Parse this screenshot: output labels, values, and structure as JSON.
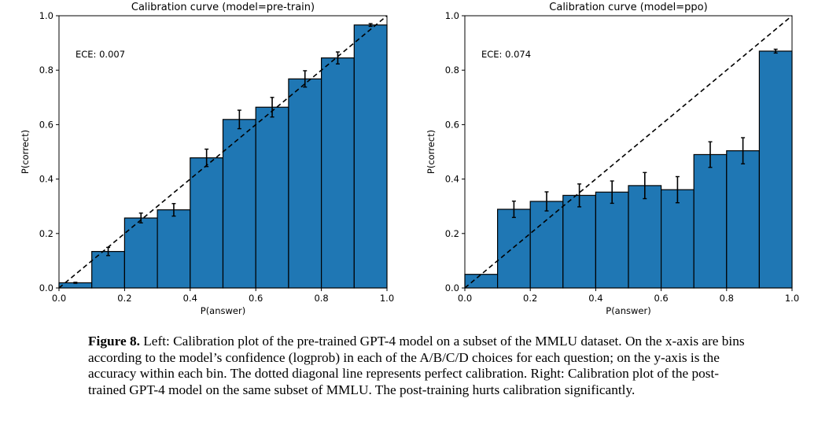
{
  "chart_data": [
    {
      "type": "bar",
      "title": "Calibration curve (model=pre-train)",
      "xlabel": "P(answer)",
      "ylabel": "P(correct)",
      "annotation": "ECE: 0.007",
      "xlim": [
        0,
        1
      ],
      "ylim": [
        0,
        1
      ],
      "xticks": [
        "0.0",
        "0.2",
        "0.4",
        "0.6",
        "0.8",
        "1.0"
      ],
      "yticks": [
        "0.0",
        "0.2",
        "0.4",
        "0.6",
        "0.8",
        "1.0"
      ],
      "bin_edges": [
        0,
        0.1,
        0.2,
        0.3,
        0.4,
        0.5,
        0.6,
        0.7,
        0.8,
        0.9,
        1.0
      ],
      "values": [
        0.019,
        0.134,
        0.257,
        0.287,
        0.478,
        0.619,
        0.664,
        0.768,
        0.845,
        0.966
      ],
      "errors": [
        0.002,
        0.015,
        0.018,
        0.023,
        0.032,
        0.034,
        0.036,
        0.03,
        0.022,
        0.005
      ],
      "diagonal": "perfect calibration (dashed)",
      "bar_color": "#1f77b4"
    },
    {
      "type": "bar",
      "title": "Calibration curve (model=ppo)",
      "xlabel": "P(answer)",
      "ylabel": "P(correct)",
      "annotation": "ECE: 0.074",
      "xlim": [
        0,
        1
      ],
      "ylim": [
        0,
        1
      ],
      "xticks": [
        "0.0",
        "0.2",
        "0.4",
        "0.6",
        "0.8",
        "1.0"
      ],
      "yticks": [
        "0.0",
        "0.2",
        "0.4",
        "0.6",
        "0.8",
        "1.0"
      ],
      "bin_edges": [
        0,
        0.1,
        0.2,
        0.3,
        0.4,
        0.5,
        0.6,
        0.7,
        0.8,
        0.9,
        1.0
      ],
      "values": [
        0.05,
        0.289,
        0.318,
        0.34,
        0.352,
        0.376,
        0.361,
        0.49,
        0.504,
        0.87
      ],
      "errors": [
        0,
        0.03,
        0.035,
        0.042,
        0.041,
        0.048,
        0.048,
        0.047,
        0.048,
        0.007
      ],
      "diagonal": "perfect calibration (dashed)",
      "bar_color": "#1f77b4"
    }
  ],
  "caption": {
    "label": "Figure 8.",
    "text": " Left: Calibration plot of the pre-trained GPT-4 model on a subset of the MMLU dataset. On the x-axis are bins according to the model’s confidence (logprob) in each of the A/B/C/D choices for each question; on the y-axis is the accuracy within each bin. The dotted diagonal line represents perfect calibration. Right: Calibration plot of the post-trained GPT-4 model on the same subset of MMLU. The post-training hurts calibration significantly."
  }
}
